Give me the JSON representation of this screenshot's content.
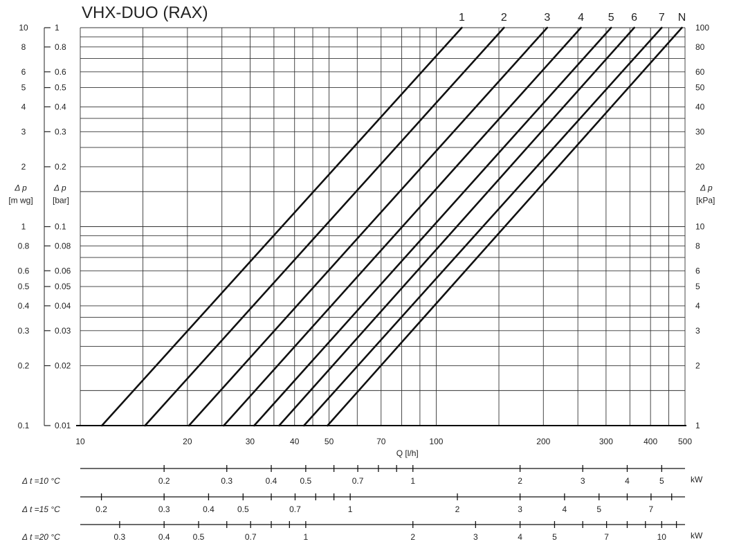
{
  "chart_data": {
    "type": "line",
    "title": "VHX-DUO  (RAX)",
    "x_scale": "log",
    "y_scale": "log",
    "xlim": [
      10,
      500
    ],
    "ylim_bar": [
      0.01,
      1
    ],
    "xlabel": "Q [l/h]",
    "ylabel_bar": [
      "Δ p",
      "[bar]"
    ],
    "ylabel_mwg": [
      "Δ p",
      "[m wg]"
    ],
    "ylabel_kpa": [
      "Δ p",
      "[kPa]"
    ],
    "x_ticks": [
      10,
      20,
      30,
      40,
      50,
      70,
      100,
      200,
      300,
      400,
      500
    ],
    "x_tick_labels": [
      "10",
      "20",
      "30",
      "40",
      "50",
      "70",
      "100",
      "200",
      "300",
      "400",
      "500"
    ],
    "x_grid": [
      10,
      15,
      20,
      25,
      30,
      35,
      40,
      45,
      50,
      60,
      70,
      80,
      90,
      100,
      150,
      200,
      250,
      300,
      350,
      400,
      450,
      500
    ],
    "y_grid_bar": [
      0.01,
      0.015,
      0.02,
      0.025,
      0.03,
      0.035,
      0.04,
      0.05,
      0.06,
      0.07,
      0.08,
      0.09,
      0.1,
      0.15,
      0.2,
      0.25,
      0.3,
      0.35,
      0.4,
      0.5,
      0.6,
      0.7,
      0.8,
      0.9,
      1
    ],
    "y_ticks_bar": [
      0.01,
      0.02,
      0.03,
      0.04,
      0.05,
      0.06,
      0.08,
      0.1,
      0.2,
      0.3,
      0.4,
      0.5,
      0.6,
      0.8,
      1
    ],
    "y_tick_labels_bar": [
      "0.01",
      "0.02",
      "0.03",
      "0.04",
      "0.05",
      "0.06",
      "0.08",
      "0.1",
      "0.2",
      "0.3",
      "0.4",
      "0.5",
      "0.6",
      "0.8",
      "1"
    ],
    "y_ticks_mwg": [
      0.1,
      0.2,
      0.3,
      0.4,
      0.5,
      0.6,
      0.8,
      1,
      2,
      3,
      4,
      5,
      6,
      8,
      10
    ],
    "y_tick_labels_mwg": [
      "0.1",
      "0.2",
      "0.3",
      "0.4",
      "0.5",
      "0.6",
      "0.8",
      "1",
      "2",
      "3",
      "4",
      "5",
      "6",
      "8",
      "10"
    ],
    "y_ticks_kpa": [
      1,
      2,
      3,
      4,
      5,
      6,
      8,
      10,
      20,
      30,
      40,
      50,
      60,
      80,
      100
    ],
    "y_tick_labels_kpa": [
      "1",
      "2",
      "3",
      "4",
      "5",
      "6",
      "8",
      "10",
      "20",
      "30",
      "40",
      "50",
      "60",
      "80",
      "100"
    ],
    "series": [
      {
        "name": "1",
        "x": [
          11.5,
          118
        ],
        "y": [
          0.01,
          1
        ]
      },
      {
        "name": "2",
        "x": [
          15.2,
          155
        ],
        "y": [
          0.01,
          1
        ]
      },
      {
        "name": "3",
        "x": [
          20.2,
          205
        ],
        "y": [
          0.01,
          1
        ]
      },
      {
        "name": "4",
        "x": [
          25.3,
          255
        ],
        "y": [
          0.01,
          1
        ]
      },
      {
        "name": "5",
        "x": [
          30.8,
          310
        ],
        "y": [
          0.01,
          1
        ]
      },
      {
        "name": "6",
        "x": [
          36.2,
          360
        ],
        "y": [
          0.01,
          1
        ]
      },
      {
        "name": "7",
        "x": [
          42.5,
          430
        ],
        "y": [
          0.01,
          1
        ]
      },
      {
        "name": "N",
        "x": [
          49.5,
          490
        ],
        "y": [
          0.01,
          1
        ]
      }
    ],
    "power_scales": [
      {
        "label": "Δ t =10 °C",
        "unit": "kW",
        "ticks": [
          0.1,
          0.2,
          0.3,
          0.4,
          0.5,
          0.6,
          0.7,
          0.8,
          0.9,
          1,
          2,
          3,
          4,
          5,
          6
        ],
        "labels": [
          {
            "value": 0.2,
            "text": "0.2"
          },
          {
            "value": 0.3,
            "text": "0.3"
          },
          {
            "value": 0.4,
            "text": "0.4"
          },
          {
            "value": 0.5,
            "text": "0.5"
          },
          {
            "value": 0.7,
            "text": "0.7"
          },
          {
            "value": 1,
            "text": "1"
          },
          {
            "value": 2,
            "text": "2"
          },
          {
            "value": 3,
            "text": "3"
          },
          {
            "value": 4,
            "text": "4"
          },
          {
            "value": 5,
            "text": "5"
          }
        ]
      },
      {
        "label": "Δ t =15 °C",
        "unit": "",
        "ticks": [
          0.2,
          0.3,
          0.4,
          0.5,
          0.6,
          0.7,
          0.8,
          0.9,
          1,
          2,
          3,
          4,
          5,
          6,
          7,
          8
        ],
        "labels": [
          {
            "value": 0.2,
            "text": "0.2"
          },
          {
            "value": 0.3,
            "text": "0.3"
          },
          {
            "value": 0.4,
            "text": "0.4"
          },
          {
            "value": 0.5,
            "text": "0.5"
          },
          {
            "value": 0.7,
            "text": "0.7"
          },
          {
            "value": 1,
            "text": "1"
          },
          {
            "value": 2,
            "text": "2"
          },
          {
            "value": 3,
            "text": "3"
          },
          {
            "value": 4,
            "text": "4"
          },
          {
            "value": 5,
            "text": "5"
          },
          {
            "value": 7,
            "text": "7"
          }
        ]
      },
      {
        "label": "Δ t =20 °C",
        "unit": "kW",
        "ticks": [
          0.3,
          0.4,
          0.5,
          0.6,
          0.7,
          0.8,
          0.9,
          1,
          2,
          3,
          4,
          5,
          6,
          7,
          8,
          9,
          10,
          11
        ],
        "labels": [
          {
            "value": 0.3,
            "text": "0.3"
          },
          {
            "value": 0.4,
            "text": "0.4"
          },
          {
            "value": 0.5,
            "text": "0.5"
          },
          {
            "value": 0.7,
            "text": "0.7"
          },
          {
            "value": 1,
            "text": "1"
          },
          {
            "value": 2,
            "text": "2"
          },
          {
            "value": 3,
            "text": "3"
          },
          {
            "value": 4,
            "text": "4"
          },
          {
            "value": 5,
            "text": "5"
          },
          {
            "value": 7,
            "text": "7"
          },
          {
            "value": 10,
            "text": "10"
          }
        ]
      }
    ]
  }
}
